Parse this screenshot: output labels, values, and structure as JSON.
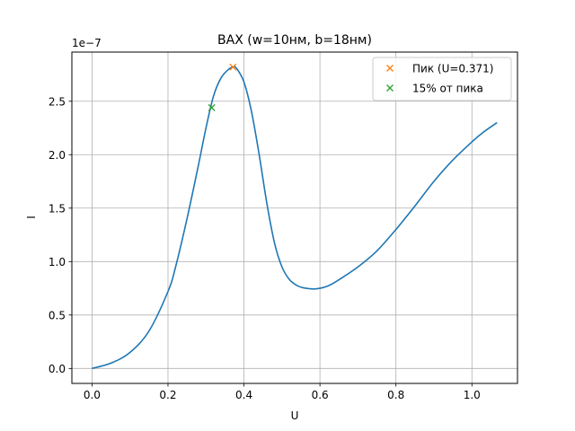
{
  "chart_data": {
    "type": "line",
    "title": "ВАХ (w=10нм, b=18нм)",
    "xlabel": "U",
    "ylabel": "I",
    "y_offset_label": "1e−7",
    "xlim": [
      -0.053,
      1.12
    ],
    "ylim": [
      -0.14,
      2.96
    ],
    "x_ticks": [
      0.0,
      0.2,
      0.4,
      0.6,
      0.8,
      1.0
    ],
    "x_tick_labels": [
      "0.0",
      "0.2",
      "0.4",
      "0.6",
      "0.8",
      "1.0"
    ],
    "y_ticks": [
      0.0,
      0.5,
      1.0,
      1.5,
      2.0,
      2.5
    ],
    "y_tick_labels": [
      "0.0",
      "0.5",
      "1.0",
      "1.5",
      "2.0",
      "2.5"
    ],
    "grid": true,
    "legend_position": "upper right",
    "series": [
      {
        "name": "",
        "color": "#1f77b4",
        "x": [
          0.0,
          0.05,
          0.1,
          0.15,
          0.2,
          0.22,
          0.25,
          0.28,
          0.3,
          0.32,
          0.34,
          0.36,
          0.371,
          0.38,
          0.4,
          0.42,
          0.44,
          0.46,
          0.48,
          0.5,
          0.52,
          0.54,
          0.56,
          0.59,
          0.62,
          0.65,
          0.7,
          0.75,
          0.8,
          0.85,
          0.9,
          0.95,
          1.0,
          1.03,
          1.066
        ],
        "y": [
          0.0,
          0.05,
          0.15,
          0.35,
          0.72,
          0.95,
          1.4,
          1.9,
          2.25,
          2.55,
          2.72,
          2.8,
          2.82,
          2.81,
          2.68,
          2.4,
          2.0,
          1.55,
          1.18,
          0.95,
          0.83,
          0.775,
          0.752,
          0.745,
          0.77,
          0.83,
          0.95,
          1.1,
          1.3,
          1.52,
          1.75,
          1.95,
          2.12,
          2.21,
          2.3
        ]
      }
    ],
    "markers": [
      {
        "name": "Пик (U=0.371)",
        "color": "#ff7f0e",
        "symbol": "x",
        "x": 0.371,
        "y": 2.82
      },
      {
        "name": "15% от пика",
        "color": "#2ca02c",
        "symbol": "x",
        "x": 0.315,
        "y": 2.44
      }
    ]
  }
}
